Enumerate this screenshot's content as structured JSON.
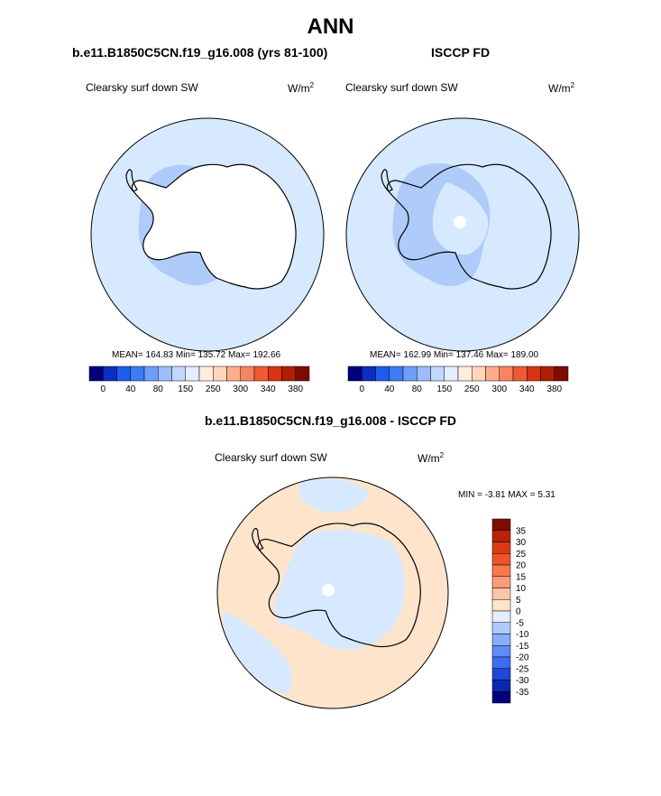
{
  "page": {
    "title": "ANN"
  },
  "chart_data": [
    {
      "type": "heatmap",
      "title": "b.e11.B1850C5CN.f19_g16.008 (yrs 81-100)",
      "variable": "Clearsky surf down SW",
      "units": "W/m",
      "units_sup": "2",
      "stats": {
        "mean": 164.83,
        "min": 135.72,
        "max": 192.66
      },
      "stats_text": "MEAN= 164.83  Min= 135.72  Max= 192.66",
      "projection": "south polar stereographic",
      "contour_levels": [
        0,
        20,
        40,
        60,
        80,
        100,
        120,
        150,
        200,
        250,
        275,
        300,
        320,
        340,
        360,
        380
      ],
      "colorbar_labels": [
        "0",
        "40",
        "80",
        "150",
        "250",
        "300",
        "340",
        "380"
      ],
      "regions": [
        {
          "region": "ocean (outer)",
          "level": "150-200",
          "color": "#D6E9FF"
        },
        {
          "region": "West Antarctica / Ross & Weddell seas",
          "level": "120-150",
          "color": "#AECBFA"
        },
        {
          "region": "East Antarctic plateau",
          "level": "200-250",
          "color": "#FFFFFF"
        }
      ]
    },
    {
      "type": "heatmap",
      "title": "ISCCP FD",
      "variable": "Clearsky surf down SW",
      "units": "W/m",
      "units_sup": "2",
      "stats": {
        "mean": 162.99,
        "min": 137.46,
        "max": 189.0
      },
      "stats_text": "MEAN= 162.99  Min= 137.46  Max= 189.00",
      "projection": "south polar stereographic",
      "contour_levels": [
        0,
        20,
        40,
        60,
        80,
        100,
        120,
        150,
        200,
        250,
        275,
        300,
        320,
        340,
        360,
        380
      ],
      "colorbar_labels": [
        "0",
        "40",
        "80",
        "150",
        "250",
        "300",
        "340",
        "380"
      ],
      "regions": [
        {
          "region": "ocean (outer)",
          "level": "150-200",
          "color": "#D6E9FF"
        },
        {
          "region": "West Antarctica / ice shelves",
          "level": "120-150",
          "color": "#AECBFA"
        },
        {
          "region": "East Antarctic plateau",
          "level": "200-250",
          "color": "#FFFFFF"
        },
        {
          "region": "South Pole (missing)",
          "level": "missing",
          "color": "#FFFFFF"
        }
      ]
    },
    {
      "type": "heatmap",
      "title": "b.e11.B1850C5CN.f19_g16.008 - ISCCP FD",
      "variable": "Clearsky surf down SW",
      "units": "W/m",
      "units_sup": "2",
      "stats": {
        "min": -3.81,
        "max": 5.31
      },
      "stats_text": "MIN =  -3.81 MAX =   5.31",
      "projection": "south polar stereographic",
      "contour_levels": [
        -40,
        -35,
        -30,
        -25,
        -20,
        -15,
        -10,
        -5,
        0,
        5,
        10,
        15,
        20,
        25,
        30,
        35,
        40
      ],
      "colorbar_labels": [
        "35",
        "30",
        "25",
        "20",
        "15",
        "10",
        "5",
        "0",
        "-5",
        "-10",
        "-15",
        "-20",
        "-25",
        "-30",
        "-35"
      ],
      "regions": [
        {
          "region": "most ocean",
          "level": "0 to 5",
          "color": "#FFE4CC"
        },
        {
          "region": "Antarctic coast / West Antarctica / parts of Southern Ocean",
          "level": "-5 to 0",
          "color": "#D6E9FF"
        },
        {
          "region": "South Pole (missing)",
          "level": "missing",
          "color": "#FFFFFF"
        }
      ]
    }
  ],
  "colors": {
    "seq_colorbar": [
      "#00007A",
      "#0A2FC2",
      "#1E5BEF",
      "#3C7BF7",
      "#6F9DF9",
      "#9DBEFA",
      "#C2D8FC",
      "#E3EEFE",
      "#FFEEDD",
      "#FFD6BC",
      "#FCAE8C",
      "#F7845F",
      "#EF5A34",
      "#D93410",
      "#B01E05",
      "#7D0B00"
    ],
    "diff_colorbar_top_to_bottom": [
      "#7D0B00",
      "#B82306",
      "#DD3A12",
      "#F1522A",
      "#F8784F",
      "#FA9C79",
      "#FDC5A7",
      "#FFE4CC",
      "#E3EEFE",
      "#AECBFA",
      "#87AEF8",
      "#5F8CF6",
      "#3B6CF1",
      "#2048D8",
      "#0A27B0",
      "#00007A"
    ],
    "ocean": "#D6E9FF",
    "low_band": "#AECBFA",
    "diff_pos": "#FFE4CC",
    "diff_neg": "#D6E9FF"
  }
}
